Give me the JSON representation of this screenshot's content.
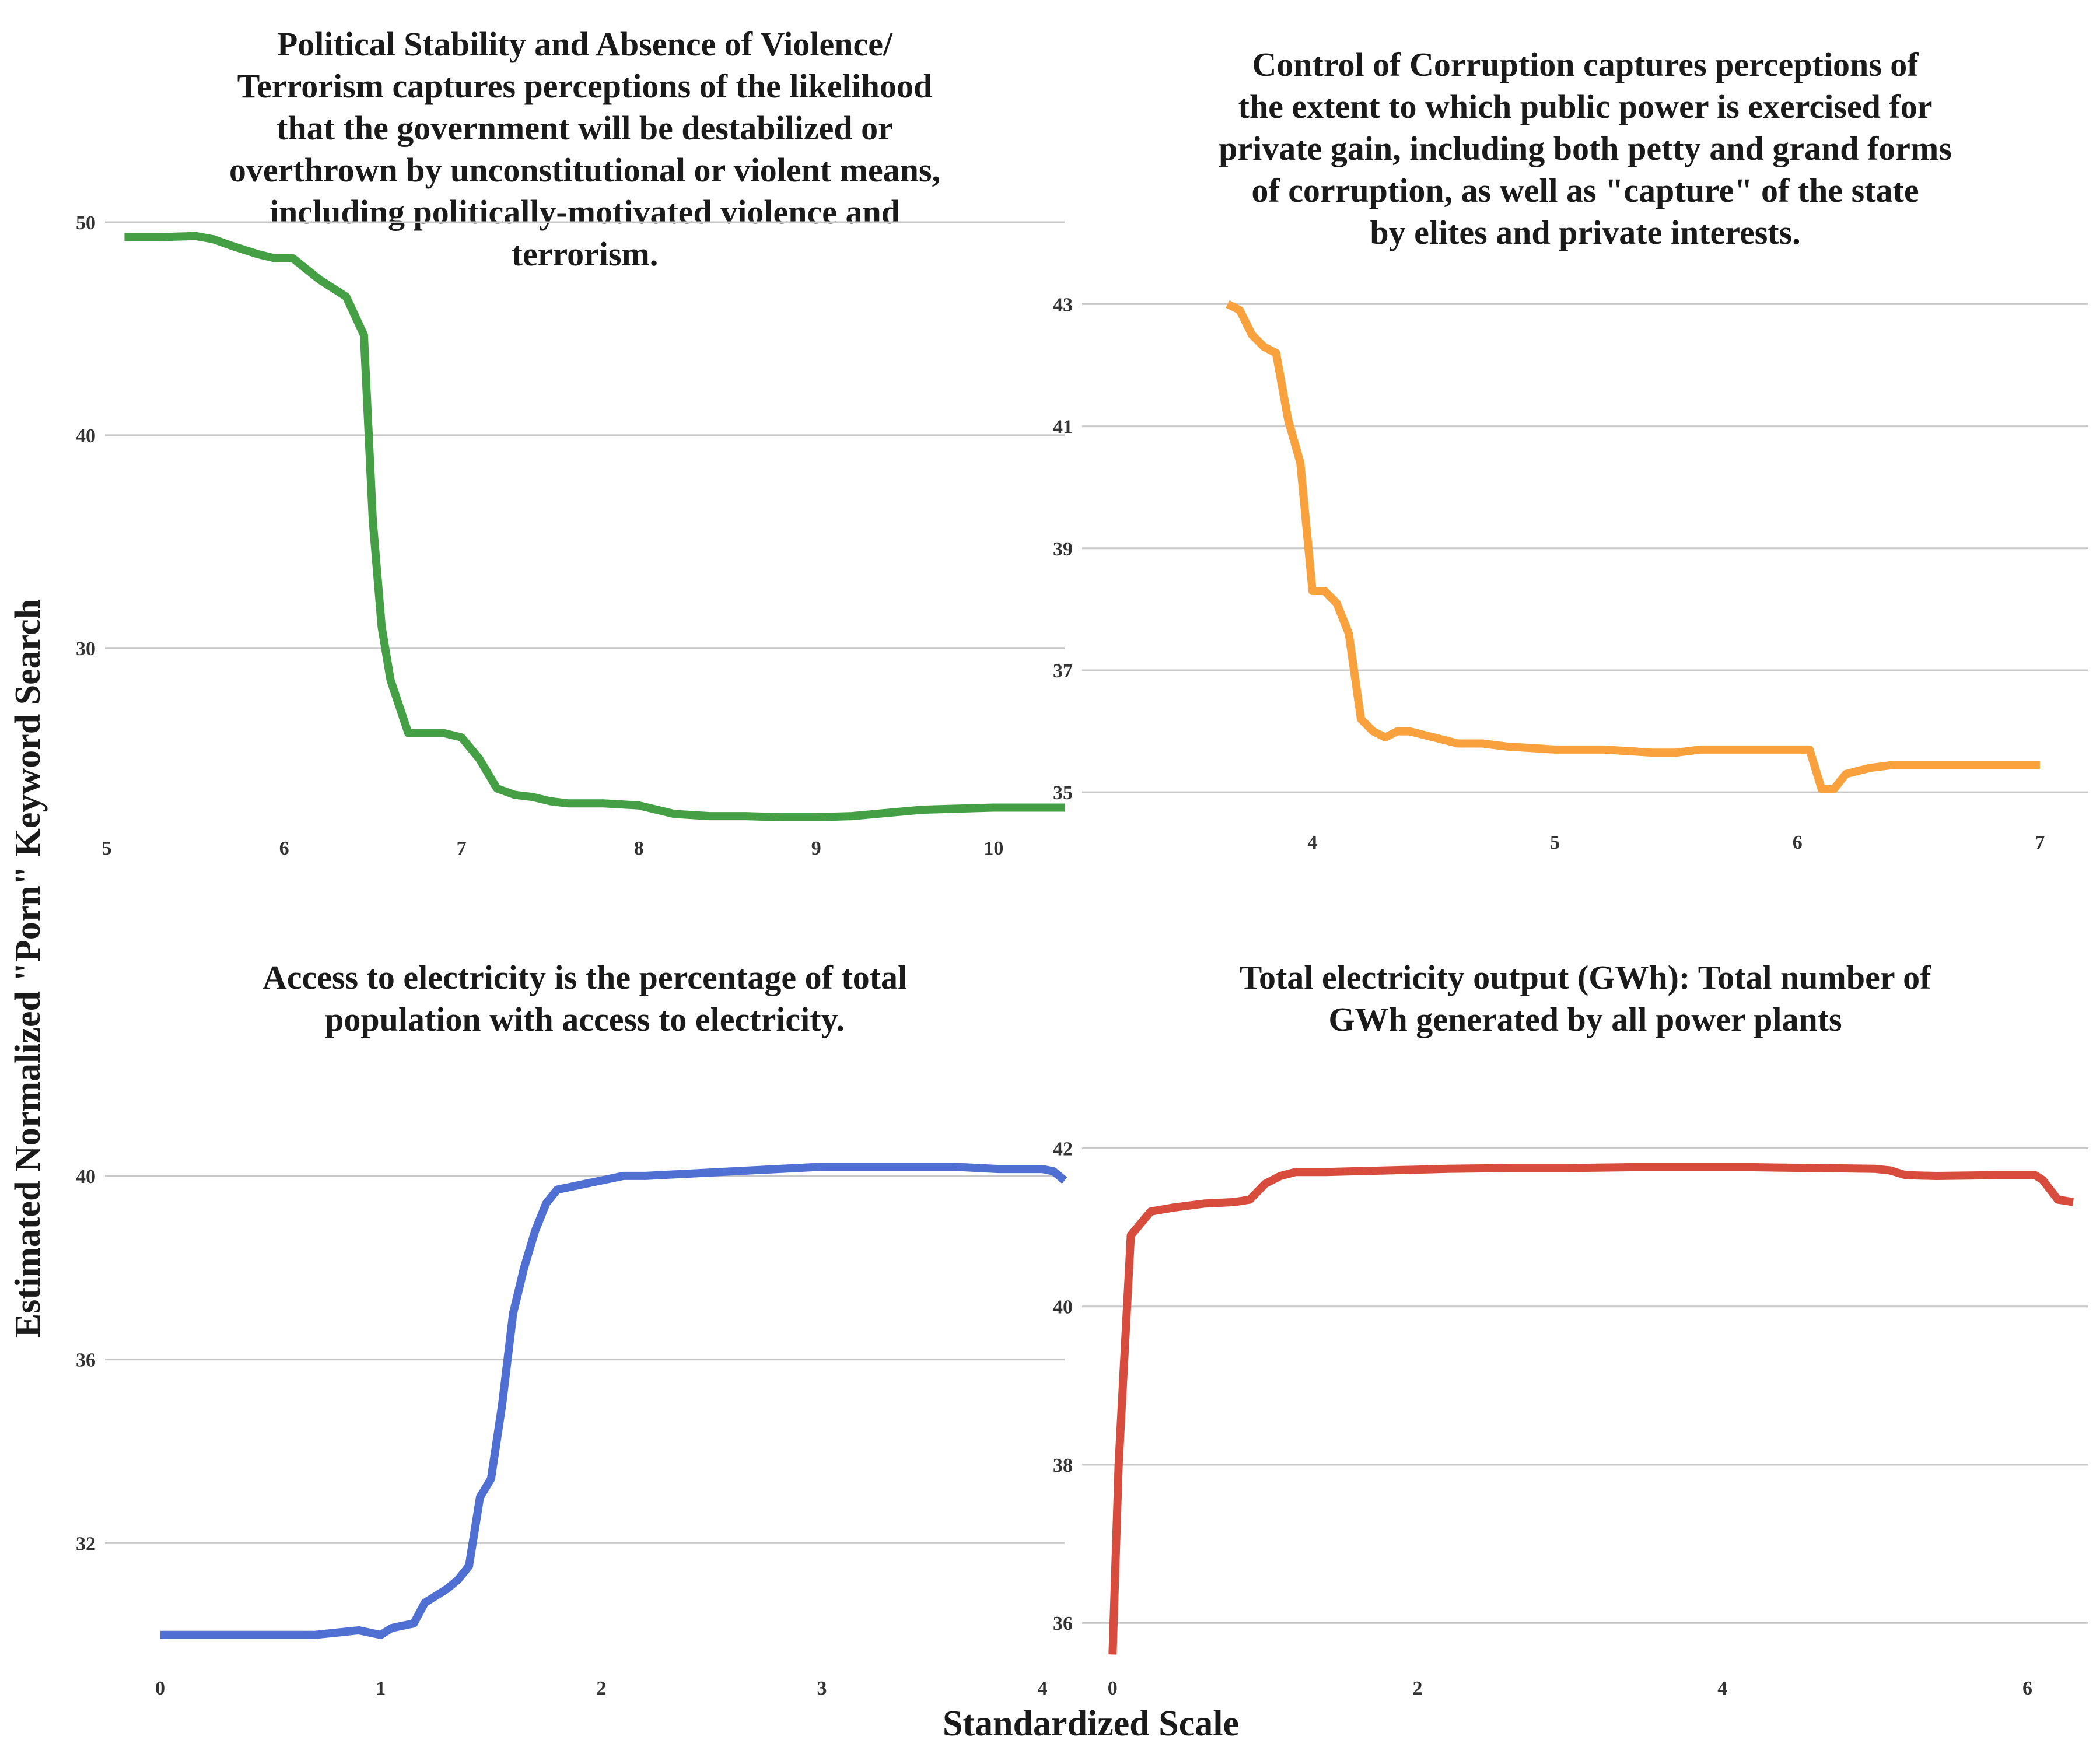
{
  "figure": {
    "xlabel": "Standardized Scale",
    "ylabel": "Estimated Normalized \"Porn\" Keyword Search"
  },
  "chart_data": [
    {
      "type": "line",
      "title_lines": [
        "Political Stability and Absence of Violence/",
        "Terrorism captures perceptions of the likelihood",
        "that the government will be destabilized or",
        "overthrown by unconstitutional or violent means,",
        "including politically-motivated violence and",
        "terrorism."
      ],
      "color": "#45a045",
      "xlim": [
        4.99,
        10.4
      ],
      "ylim": [
        21.8,
        50.3
      ],
      "xticks": [
        5,
        6,
        7,
        8,
        9,
        10
      ],
      "yticks": [
        30,
        40,
        50
      ],
      "grid": true,
      "x": [
        5.1,
        5.3,
        5.5,
        5.6,
        5.7,
        5.85,
        5.95,
        6.05,
        6.2,
        6.35,
        6.45,
        6.5,
        6.55,
        6.6,
        6.7,
        6.8,
        6.9,
        7.0,
        7.1,
        7.2,
        7.3,
        7.4,
        7.5,
        7.6,
        7.8,
        8.0,
        8.2,
        8.4,
        8.6,
        8.8,
        9.0,
        9.2,
        9.4,
        9.6,
        9.8,
        10.0,
        10.2,
        10.4
      ],
      "y": [
        49.3,
        49.3,
        49.35,
        49.2,
        48.9,
        48.5,
        48.3,
        48.3,
        47.3,
        46.5,
        44.7,
        36.0,
        31.0,
        28.5,
        26.0,
        26.0,
        26.0,
        25.8,
        24.8,
        23.4,
        23.1,
        23.0,
        22.8,
        22.7,
        22.7,
        22.6,
        22.2,
        22.1,
        22.1,
        22.05,
        22.05,
        22.1,
        22.25,
        22.4,
        22.45,
        22.5,
        22.5,
        22.5
      ]
    },
    {
      "type": "line",
      "title_lines": [
        "Control of Corruption captures perceptions of",
        "the extent to which public power is exercised for",
        "private gain, including both petty and grand forms",
        "of corruption, as well as \"capture\" of the state",
        "by elites and private interests."
      ],
      "color": "#f8a13d",
      "xlim": [
        3.05,
        7.2
      ],
      "ylim": [
        34.6,
        43.3
      ],
      "xticks": [
        4,
        5,
        6,
        7
      ],
      "yticks": [
        35,
        37,
        39,
        41,
        43
      ],
      "grid": true,
      "x": [
        3.65,
        3.7,
        3.75,
        3.8,
        3.85,
        3.9,
        3.95,
        4.0,
        4.05,
        4.1,
        4.15,
        4.2,
        4.25,
        4.3,
        4.35,
        4.4,
        4.5,
        4.6,
        4.7,
        4.8,
        5.0,
        5.2,
        5.4,
        5.5,
        5.6,
        5.8,
        6.0,
        6.05,
        6.1,
        6.15,
        6.2,
        6.3,
        6.4,
        6.6,
        6.8,
        7.0
      ],
      "y": [
        43.0,
        42.9,
        42.5,
        42.3,
        42.2,
        41.1,
        40.4,
        38.3,
        38.3,
        38.1,
        37.6,
        36.2,
        36.0,
        35.9,
        36.0,
        36.0,
        35.9,
        35.8,
        35.8,
        35.75,
        35.7,
        35.7,
        35.65,
        35.65,
        35.7,
        35.7,
        35.7,
        35.7,
        35.05,
        35.05,
        35.3,
        35.4,
        35.45,
        35.45,
        35.45,
        35.45
      ]
    },
    {
      "type": "line",
      "title_lines": [
        "Access to electricity is the percentage of total",
        "population with access to electricity."
      ],
      "color": "#4f6fd3",
      "xlim": [
        -0.25,
        4.1
      ],
      "ylim": [
        29.4,
        41.6
      ],
      "xticks": [
        0,
        1,
        2,
        3,
        4
      ],
      "yticks": [
        32,
        36,
        40
      ],
      "grid": true,
      "x": [
        0.0,
        0.2,
        0.4,
        0.6,
        0.7,
        0.8,
        0.9,
        1.0,
        1.05,
        1.1,
        1.15,
        1.2,
        1.3,
        1.35,
        1.4,
        1.45,
        1.5,
        1.55,
        1.6,
        1.65,
        1.7,
        1.75,
        1.8,
        1.85,
        1.9,
        2.0,
        2.1,
        2.2,
        2.4,
        2.6,
        2.8,
        3.0,
        3.2,
        3.4,
        3.6,
        3.8,
        4.0,
        4.05,
        4.1
      ],
      "y": [
        30.0,
        30.0,
        30.0,
        30.0,
        30.0,
        30.05,
        30.1,
        30.0,
        30.15,
        30.2,
        30.25,
        30.7,
        31.0,
        31.2,
        31.5,
        33.0,
        33.4,
        35.0,
        37.0,
        38.0,
        38.8,
        39.4,
        39.7,
        39.75,
        39.8,
        39.9,
        40.0,
        40.0,
        40.05,
        40.1,
        40.15,
        40.2,
        40.2,
        40.2,
        40.2,
        40.15,
        40.15,
        40.1,
        39.9
      ]
    },
    {
      "type": "line",
      "title_lines": [
        "Total electricity output (GWh): Total number of",
        "GWh generated by all power plants"
      ],
      "color": "#d74c3c",
      "xlim": [
        -0.2,
        6.4
      ],
      "ylim": [
        35.5,
        42.8
      ],
      "xticks": [
        0,
        2,
        4,
        6
      ],
      "yticks": [
        36,
        38,
        40,
        42
      ],
      "grid": true,
      "x": [
        0.0,
        0.04,
        0.12,
        0.25,
        0.4,
        0.6,
        0.8,
        0.9,
        1.0,
        1.1,
        1.2,
        1.4,
        1.8,
        2.2,
        2.6,
        3.0,
        3.4,
        3.8,
        4.2,
        4.6,
        5.0,
        5.1,
        5.2,
        5.4,
        5.8,
        6.0,
        6.05,
        6.1,
        6.2,
        6.3
      ],
      "y": [
        35.6,
        38.0,
        40.9,
        41.2,
        41.25,
        41.3,
        41.32,
        41.35,
        41.55,
        41.65,
        41.7,
        41.7,
        41.72,
        41.74,
        41.75,
        41.75,
        41.76,
        41.76,
        41.76,
        41.75,
        41.74,
        41.72,
        41.66,
        41.65,
        41.66,
        41.66,
        41.66,
        41.6,
        41.35,
        41.32
      ]
    }
  ]
}
